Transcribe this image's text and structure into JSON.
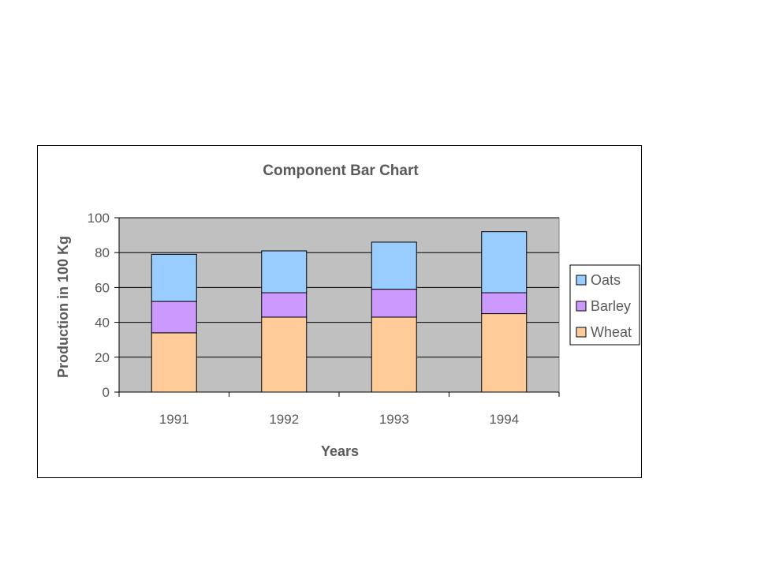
{
  "chart_data": {
    "type": "bar",
    "stacked": true,
    "title": "Component Bar Chart",
    "xlabel": "Years",
    "ylabel": "Production in 100 Kg",
    "categories": [
      "1991",
      "1992",
      "1993",
      "1994"
    ],
    "series": [
      {
        "name": "Wheat",
        "values": [
          34,
          43,
          43,
          45
        ],
        "color": "#ffcc99"
      },
      {
        "name": "Barley",
        "values": [
          18,
          14,
          16,
          12
        ],
        "color": "#cc99ff"
      },
      {
        "name": "Oats",
        "values": [
          27,
          24,
          27,
          35
        ],
        "color": "#99ccff"
      }
    ],
    "ylim": [
      0,
      100
    ],
    "yticks": [
      "0",
      "20",
      "40",
      "60",
      "80",
      "100"
    ],
    "grid": true,
    "legend_position": "right",
    "legend_order": [
      "Oats",
      "Barley",
      "Wheat"
    ],
    "plot_background": "#c0c0c0"
  }
}
